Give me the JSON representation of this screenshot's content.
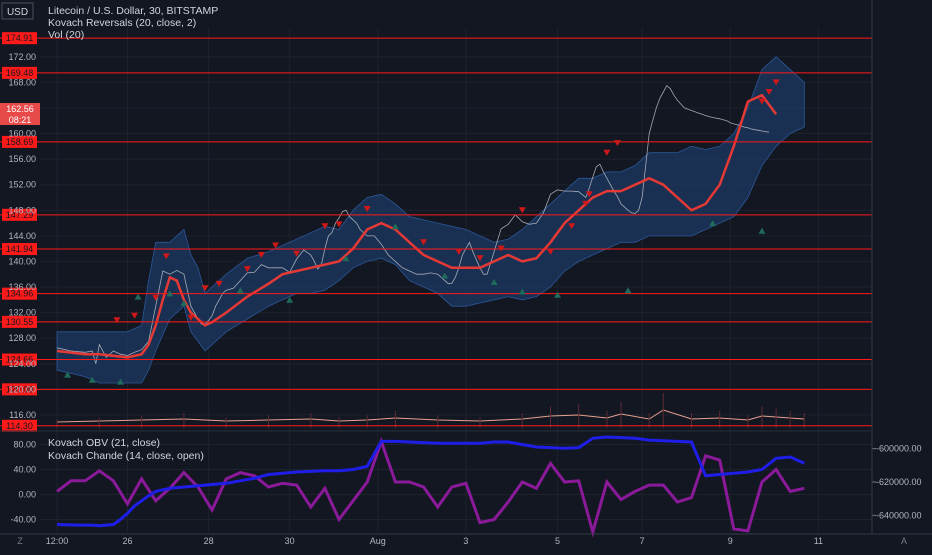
{
  "header": {
    "currency": "USD",
    "lines": [
      "Litecoin / U.S. Dollar, 30, BITSTAMP",
      "Kovach Reversals (20, close, 2)",
      "Vol (20)"
    ]
  },
  "lower_header": {
    "lines": [
      "Kovach OBV (21, close)",
      "Kovach Chande (14, close, open)"
    ]
  },
  "price_badge": {
    "value": "162.56",
    "countdown": "08:21"
  },
  "footer": {
    "left_icon": "Z",
    "right_icon": "A"
  },
  "colors": {
    "background": "#131722",
    "level": "#ff1a1a",
    "mid_line": "#e53935",
    "band": "#1c3a63",
    "obv": "#1e1ee8",
    "chande": "#8b1a9a",
    "volume": "#e8a090",
    "up_marker": "#1f6b5a",
    "down_marker": "#d01818"
  },
  "chart_data": [
    {
      "type": "line",
      "title": "Litecoin / U.S. Dollar, 30, BITSTAMP",
      "x_ticks": [
        "12:00",
        "26",
        "28",
        "30",
        "Aug",
        "3",
        "5",
        "7",
        "9",
        "11"
      ],
      "y_ticks": [
        "116.00",
        "120.00",
        "124.00",
        "128.00",
        "132.00",
        "136.00",
        "140.00",
        "144.00",
        "148.00",
        "152.00",
        "156.00",
        "160.00",
        "164.00",
        "168.00",
        "172.00"
      ],
      "ylim": [
        113.8,
        176.5
      ],
      "levels": [
        "174.91",
        "169.48",
        "158.69",
        "147.29",
        "141.94",
        "134.96",
        "130.55",
        "124.66",
        "120.00",
        "114.30"
      ],
      "price_x": [
        0,
        2,
        4,
        5,
        5.5,
        6,
        7,
        8,
        9,
        10,
        11,
        12,
        13,
        14,
        15,
        16,
        17,
        18,
        19,
        20,
        20.5,
        21,
        21.5,
        22,
        22.5,
        23,
        23.5,
        24,
        25,
        26,
        27,
        28,
        29,
        30,
        31,
        32,
        33,
        34,
        35,
        36,
        36.5,
        37,
        37.5,
        38,
        38.5,
        39,
        39.5,
        40,
        40.5,
        41,
        41.5,
        42,
        42.5,
        43,
        44,
        45,
        46,
        47,
        48,
        49,
        50,
        51,
        52,
        53,
        54,
        55,
        55.5,
        56,
        56.5,
        57,
        57.5,
        58,
        58.5,
        59,
        59.5,
        60,
        60.5,
        61,
        62,
        63,
        64,
        65,
        66,
        67,
        68,
        69,
        70,
        71,
        72,
        73,
        74,
        75,
        75.5,
        76,
        76.5,
        77,
        77.5,
        78,
        78.5,
        79,
        79.5,
        80,
        80.5,
        81,
        81.5,
        82,
        82.5,
        83,
        83.5,
        84,
        84.5,
        85,
        85.5,
        86,
        86.5,
        87,
        87.5,
        88,
        88.5,
        89,
        89.5,
        90,
        90.5,
        91,
        91.5,
        92,
        93,
        94,
        95,
        95.5,
        96,
        97,
        97.5,
        98,
        98.5,
        99,
        99.5,
        100,
        100.5,
        101,
        102,
        103,
        104,
        105,
        106
      ],
      "price_y": [
        126.5,
        126,
        125.8,
        126,
        124,
        127,
        125,
        126,
        125.5,
        125.3,
        125.8,
        126.2,
        127.5,
        133,
        138.5,
        138,
        138.6,
        138,
        133,
        131,
        130.2,
        130.1,
        130.8,
        131.5,
        133,
        134,
        135,
        135.5,
        135.8,
        137,
        138.2,
        138.3,
        139.5,
        139,
        139,
        139,
        138.3,
        140.4,
        141.8,
        141,
        140,
        138.8,
        139.5,
        142,
        144,
        144.5,
        146,
        146.8,
        147.8,
        148,
        147,
        146.5,
        146,
        145,
        144,
        144,
        142.7,
        141,
        140,
        139,
        138.5,
        138,
        138,
        138.2,
        138,
        137,
        136.5,
        136.6,
        137.5,
        139,
        141,
        142,
        143,
        141.5,
        140.2,
        139,
        138,
        138,
        141.5,
        145.1,
        145.8,
        147.3,
        146.2,
        145.8,
        146,
        147.6,
        150.5,
        151.2,
        151,
        151,
        150.9,
        150,
        151.5,
        153.2,
        154.8,
        155.2,
        154,
        153,
        152,
        151,
        150.1,
        149,
        148.5,
        148,
        147.6,
        147.5,
        148,
        150,
        155,
        160,
        162,
        164,
        165.5,
        166.5,
        167.5,
        167,
        166,
        165.2,
        164.6,
        164,
        163.8,
        163.6,
        163.4,
        163.2,
        163,
        162.8,
        162.5,
        162.3,
        162,
        161.7,
        161.5,
        161.2,
        161,
        160.9,
        160.7,
        160.6,
        160.5,
        160.4,
        160.3,
        160.2
      ],
      "band_x": [
        0,
        4,
        6,
        10,
        12,
        13,
        14,
        16,
        18,
        19,
        20,
        21,
        22,
        24,
        27,
        30,
        32,
        34,
        36,
        38,
        40,
        42,
        44,
        46,
        48,
        50,
        52,
        54,
        56,
        58,
        60,
        62,
        64,
        66,
        68,
        70,
        72,
        74,
        76,
        78,
        80,
        82,
        84,
        86,
        88,
        90,
        92,
        94,
        96,
        98,
        100,
        102,
        104,
        106
      ],
      "band_upper": [
        129,
        129,
        129,
        129,
        130,
        137,
        143,
        143,
        145,
        141,
        139,
        135,
        136,
        138,
        140.5,
        141.5,
        142.5,
        143.5,
        144.5,
        145.5,
        145,
        148,
        150,
        150.5,
        149,
        147,
        146.5,
        146,
        145.5,
        145,
        144,
        143,
        143.5,
        145,
        147,
        149,
        151,
        153,
        153,
        154,
        154,
        155,
        157,
        157,
        157,
        158,
        157.5,
        158,
        160,
        164,
        170,
        172,
        170,
        168
      ],
      "band_lower": [
        123,
        122,
        121,
        121,
        121,
        123,
        126,
        131,
        133,
        129,
        127.5,
        126,
        127,
        129,
        131,
        133,
        134,
        135,
        135,
        135.5,
        137,
        139,
        140,
        140.5,
        139.5,
        137,
        136,
        135,
        133,
        133,
        133.5,
        134,
        134.5,
        134,
        134.5,
        136,
        138.5,
        140,
        141,
        142,
        143,
        143,
        144,
        144,
        144,
        144,
        145,
        146,
        147,
        150,
        155,
        158,
        160,
        161
      ],
      "mid_x": [
        0,
        4,
        6,
        10,
        12,
        13,
        14,
        15,
        16,
        17,
        18,
        19,
        20,
        21,
        22,
        24,
        27,
        30,
        32,
        34,
        36,
        38,
        40,
        42,
        44,
        46,
        48,
        50,
        52,
        54,
        56,
        58,
        60,
        62,
        64,
        66,
        68,
        70,
        72,
        74,
        76,
        78,
        80,
        82,
        84,
        86,
        88,
        90,
        92,
        94,
        96,
        98,
        100,
        102,
        104,
        106
      ],
      "mid_y": [
        126,
        125.5,
        125.5,
        125,
        125.5,
        127,
        130,
        134,
        137.5,
        137,
        134,
        132,
        131,
        130,
        130.5,
        132,
        134.5,
        136.5,
        138,
        138.5,
        139,
        139.5,
        140,
        142,
        145,
        146,
        145,
        143,
        141,
        140,
        139,
        139,
        139,
        140,
        141,
        140,
        140.5,
        143,
        146,
        148,
        150,
        151,
        151,
        152,
        153,
        152,
        150,
        148,
        149,
        152,
        158,
        165,
        166,
        163
      ],
      "obv_x": [
        0,
        3,
        5,
        6,
        8,
        9,
        10,
        11,
        12,
        13,
        14,
        16,
        18,
        20,
        22,
        24,
        26,
        28,
        30,
        34,
        38,
        40,
        42,
        44,
        46,
        48,
        50,
        52,
        54,
        56,
        58,
        60,
        62,
        64,
        66,
        68,
        70,
        72,
        74,
        76,
        78,
        80,
        82,
        84,
        86,
        88,
        90,
        92,
        94,
        96,
        98,
        100,
        102,
        104,
        106
      ],
      "obv_y": [
        -48,
        -49,
        -49,
        -50,
        -48,
        -40,
        -30,
        -18,
        -10,
        -2,
        5,
        10,
        12,
        14,
        16,
        18,
        22,
        26,
        32,
        36,
        38,
        38,
        40,
        45,
        85,
        85,
        84,
        83,
        82,
        82,
        82,
        82,
        84,
        84,
        80,
        76,
        75,
        74,
        75,
        90,
        92,
        91,
        90,
        87,
        86,
        85,
        84,
        30,
        32,
        34,
        36,
        40,
        58,
        60,
        50
      ],
      "chande_x": [
        0,
        2,
        4,
        6,
        8,
        10,
        12,
        14,
        16,
        18,
        20,
        22,
        24,
        26,
        28,
        30,
        32,
        34,
        36,
        38,
        40,
        42,
        44,
        46,
        48,
        50,
        52,
        54,
        56,
        58,
        60,
        62,
        64,
        66,
        68,
        70,
        72,
        74,
        76,
        78,
        80,
        82,
        84,
        86,
        88,
        90,
        92,
        94,
        96,
        98,
        100,
        102,
        104,
        106
      ],
      "chande_y": [
        5,
        22,
        22,
        38,
        22,
        -15,
        25,
        -10,
        10,
        35,
        12,
        -25,
        25,
        35,
        30,
        12,
        18,
        15,
        -20,
        10,
        -40,
        -10,
        20,
        85,
        20,
        20,
        12,
        -20,
        12,
        18,
        -45,
        -40,
        -12,
        20,
        10,
        50,
        20,
        22,
        -60,
        20,
        -8,
        5,
        15,
        15,
        -12,
        -5,
        62,
        55,
        -55,
        -58,
        20,
        40,
        5,
        10
      ],
      "vol_x": [
        0,
        6,
        12,
        18,
        24,
        30,
        36,
        40,
        44,
        48,
        54,
        60,
        66,
        70,
        74,
        78,
        80,
        84,
        86,
        90,
        94,
        98,
        100,
        102,
        104,
        106
      ],
      "vol_y": [
        2,
        3,
        4,
        5,
        3,
        4,
        5,
        3,
        4,
        6,
        4,
        3,
        5,
        8,
        9,
        6,
        10,
        5,
        14,
        5,
        6,
        4,
        8,
        7,
        6,
        5
      ],
      "buy_x": [
        1.5,
        5,
        9,
        11.5,
        16,
        18,
        26,
        33,
        41,
        48,
        55,
        62,
        66,
        71,
        81,
        93,
        100
      ],
      "buy_y": [
        122.3,
        121.5,
        121.2,
        134.5,
        135,
        133.5,
        135.5,
        134,
        140.5,
        145.5,
        137.8,
        136.8,
        135.3,
        134.8,
        135.5,
        146,
        144.8
      ],
      "sell_x": [
        8.5,
        11,
        14,
        15.5,
        19,
        21,
        23,
        27,
        29,
        31,
        34,
        38,
        40,
        44,
        52,
        57,
        60,
        63,
        66,
        70,
        73,
        75,
        75.5,
        78,
        79.5,
        100,
        101,
        102
      ],
      "sell_y": [
        130.8,
        131.5,
        134.3,
        140.8,
        131.2,
        135.8,
        136.5,
        138.8,
        141,
        142.5,
        141.2,
        145.5,
        145.8,
        148.2,
        143,
        141.5,
        140.5,
        142,
        148,
        141.5,
        145.5,
        149,
        150.5,
        157,
        158.5,
        165,
        166.5,
        168
      ]
    },
    {
      "type": "line",
      "title": "Kovach OBV (21, close)",
      "left_ticks": [
        "80.00",
        "40.00",
        "0.00",
        "-40.00"
      ],
      "left_range": [
        -60,
        100
      ],
      "right_ticks": [
        "-600000.00",
        "-620000.00",
        "-640000.00"
      ],
      "right_range": [
        -650000,
        -590000
      ]
    }
  ]
}
